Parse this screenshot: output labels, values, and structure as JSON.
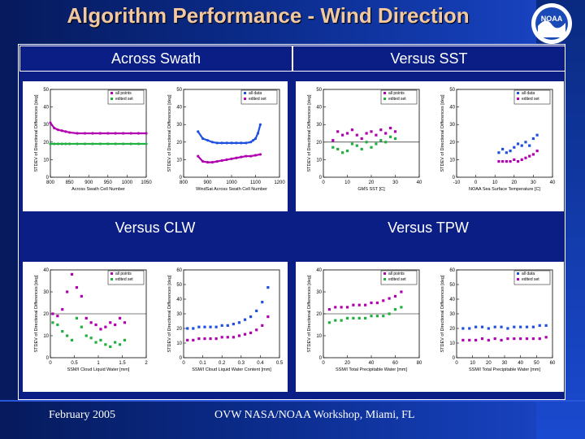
{
  "title": "Algorithm Performance - Wind Direction",
  "logo": {
    "text": "NOAA",
    "icon": "noaa-logo-icon"
  },
  "footer": {
    "date": "February 2005",
    "event": "OVW NASA/NOAA Workshop, Miami, FL"
  },
  "colors": {
    "series_all": "#4040d0",
    "series_edited": "#20b040",
    "series_purple": "#b000b0",
    "accent_title": "#f2c8a0"
  },
  "panels": [
    {
      "header": "Across Swath"
    },
    {
      "header": "Versus SST"
    },
    {
      "header": "Versus CLW"
    },
    {
      "header": "Versus TPW"
    }
  ],
  "chart_data": [
    {
      "type": "line",
      "panel": "Across Swath",
      "plot": "left",
      "title": "",
      "xlabel": "Across Swath Cell Number",
      "ylabel": "STDEV of Directional Differences [deg]",
      "xlim": [
        800,
        1050
      ],
      "ylim": [
        0,
        50
      ],
      "xticks": [
        800,
        850,
        900,
        950,
        1000,
        1050
      ],
      "yticks": [
        0,
        10,
        20,
        30,
        40,
        50
      ],
      "legend": [
        "all points",
        "edited set"
      ],
      "series": [
        {
          "name": "all points",
          "color": "#b000b0",
          "x": [
            800,
            810,
            820,
            830,
            840,
            850,
            870,
            890,
            910,
            930,
            950,
            970,
            990,
            1010,
            1030,
            1050
          ],
          "y": [
            31,
            28,
            27,
            26.5,
            26,
            25.5,
            25,
            25,
            25,
            25,
            25,
            25,
            25,
            25,
            25,
            25
          ]
        },
        {
          "name": "edited set",
          "color": "#20b040",
          "x": [
            800,
            810,
            820,
            830,
            840,
            850,
            870,
            890,
            910,
            930,
            950,
            970,
            990,
            1010,
            1030,
            1050
          ],
          "y": [
            19,
            19,
            19,
            19,
            19,
            19,
            19,
            19,
            19,
            19,
            19,
            19,
            19,
            19,
            19,
            19
          ]
        }
      ]
    },
    {
      "type": "line",
      "panel": "Across Swath",
      "plot": "right",
      "title": "",
      "xlabel": "WindSat Across Swath Cell Number",
      "ylabel": "STDEV of Directional Differences [deg]",
      "xlim": [
        800,
        1200
      ],
      "ylim": [
        0,
        50
      ],
      "xticks": [
        800,
        900,
        1000,
        1100,
        1200
      ],
      "yticks": [
        0,
        10,
        20,
        30,
        40,
        50
      ],
      "legend": [
        "all data",
        "edited set"
      ],
      "series": [
        {
          "name": "all data",
          "color": "#2050e0",
          "x": [
            860,
            880,
            900,
            920,
            940,
            960,
            980,
            1000,
            1020,
            1040,
            1060,
            1080,
            1090,
            1100,
            1110,
            1120
          ],
          "y": [
            26,
            22,
            21,
            20,
            19.5,
            19.5,
            19.5,
            19.5,
            19.5,
            19.5,
            19.5,
            20,
            21,
            22,
            25,
            30
          ]
        },
        {
          "name": "edited set",
          "color": "#b000b0",
          "x": [
            860,
            880,
            900,
            920,
            940,
            960,
            980,
            1000,
            1020,
            1040,
            1060,
            1080,
            1100,
            1120
          ],
          "y": [
            12,
            9,
            8.5,
            8.5,
            9,
            9.5,
            10,
            10.5,
            11,
            11.5,
            12,
            12,
            12.5,
            13
          ]
        }
      ]
    },
    {
      "type": "scatter",
      "panel": "Versus SST",
      "plot": "left",
      "title": "",
      "xlabel": "GMS SST [C]",
      "ylabel": "STDEV of Directional Differences [deg]",
      "xlim": [
        0,
        40
      ],
      "ylim": [
        0,
        50
      ],
      "xticks": [
        0,
        10,
        20,
        30,
        40
      ],
      "yticks": [
        0,
        10,
        20,
        30,
        40,
        50
      ],
      "legend": [
        "all points",
        "edited set"
      ],
      "reference_y": 20,
      "series": [
        {
          "name": "all points",
          "color": "#b000b0",
          "x": [
            4,
            6,
            8,
            10,
            12,
            14,
            16,
            18,
            20,
            22,
            24,
            26,
            28,
            30
          ],
          "y": [
            21,
            26,
            24,
            25,
            27,
            24,
            22,
            25,
            26,
            24,
            27,
            25,
            28,
            26
          ]
        },
        {
          "name": "edited set",
          "color": "#20b040",
          "x": [
            4,
            6,
            8,
            10,
            12,
            14,
            16,
            18,
            20,
            22,
            24,
            26,
            28,
            30
          ],
          "y": [
            17,
            16,
            14,
            15,
            19,
            18,
            16,
            20,
            17,
            19,
            21,
            20,
            23,
            22
          ]
        }
      ]
    },
    {
      "type": "scatter",
      "panel": "Versus SST",
      "plot": "right",
      "title": "",
      "xlabel": "NOAA Sea Surface Temperature [C]",
      "ylabel": "STDEV of Directional Differences [deg]",
      "xlim": [
        -10,
        40
      ],
      "ylim": [
        0,
        50
      ],
      "xticks": [
        -10,
        0,
        10,
        20,
        30,
        40
      ],
      "yticks": [
        0,
        10,
        20,
        30,
        40,
        50
      ],
      "legend": [
        "all data",
        "edited set"
      ],
      "series": [
        {
          "name": "all data",
          "color": "#2050e0",
          "x": [
            12,
            14,
            16,
            18,
            20,
            22,
            24,
            26,
            28,
            30,
            32
          ],
          "y": [
            14,
            16,
            14,
            15,
            17,
            19,
            18,
            20,
            18,
            22,
            24
          ]
        },
        {
          "name": "edited set",
          "color": "#b000b0",
          "x": [
            12,
            14,
            16,
            18,
            20,
            22,
            24,
            26,
            28,
            30,
            32
          ],
          "y": [
            9,
            9,
            9,
            9,
            10,
            9,
            10,
            11,
            12,
            13,
            15
          ]
        }
      ]
    },
    {
      "type": "scatter",
      "panel": "Versus CLW",
      "plot": "left",
      "title": "",
      "xlabel": "SSM/I Cloud Liquid Water [mm]",
      "ylabel": "STDEV of Directional Differences [deg]",
      "xlim": [
        0,
        2
      ],
      "ylim": [
        0,
        40
      ],
      "xticks": [
        0.0,
        0.5,
        1.0,
        1.5,
        2.0
      ],
      "yticks": [
        0,
        10,
        20,
        30,
        40
      ],
      "legend": [
        "all points",
        "edited set"
      ],
      "reference_y": 20,
      "series": [
        {
          "name": "all points",
          "color": "#b000b0",
          "x": [
            0.05,
            0.15,
            0.25,
            0.35,
            0.45,
            0.55,
            0.65,
            0.75,
            0.85,
            0.95,
            1.05,
            1.15,
            1.25,
            1.35,
            1.45,
            1.55
          ],
          "y": [
            20,
            19,
            22,
            30,
            38,
            32,
            28,
            18,
            16,
            15,
            13,
            14,
            16,
            15,
            18,
            16
          ]
        },
        {
          "name": "edited set",
          "color": "#20b040",
          "x": [
            0.05,
            0.15,
            0.25,
            0.35,
            0.45,
            0.55,
            0.65,
            0.75,
            0.85,
            0.95,
            1.05,
            1.15,
            1.25,
            1.35,
            1.45,
            1.55
          ],
          "y": [
            16,
            15,
            12,
            10,
            8,
            18,
            14,
            10,
            9,
            7,
            8,
            6,
            5,
            7,
            6,
            8
          ]
        }
      ]
    },
    {
      "type": "scatter",
      "panel": "Versus CLW",
      "plot": "right",
      "title": "",
      "xlabel": "SSM/I Cloud Liquid Water Content [mm]",
      "ylabel": "STDEV of Directional Differences [deg]",
      "xlim": [
        0,
        0.5
      ],
      "ylim": [
        0,
        60
      ],
      "xticks": [
        0,
        0.1,
        0.2,
        0.3,
        0.4,
        0.5
      ],
      "yticks": [
        0,
        10,
        20,
        30,
        40,
        50,
        60
      ],
      "legend": [],
      "series": [
        {
          "name": "all data",
          "color": "#2050e0",
          "x": [
            0.02,
            0.05,
            0.08,
            0.11,
            0.14,
            0.17,
            0.2,
            0.23,
            0.26,
            0.29,
            0.32,
            0.35,
            0.38,
            0.41,
            0.44
          ],
          "y": [
            20,
            20,
            21,
            21,
            21,
            21,
            22,
            22,
            23,
            24,
            26,
            28,
            32,
            38,
            48
          ]
        },
        {
          "name": "edited set",
          "color": "#b000b0",
          "x": [
            0.02,
            0.05,
            0.08,
            0.11,
            0.14,
            0.17,
            0.2,
            0.23,
            0.26,
            0.29,
            0.32,
            0.35,
            0.38,
            0.41,
            0.44
          ],
          "y": [
            12,
            12,
            13,
            13,
            13,
            13,
            14,
            14,
            14,
            15,
            16,
            17,
            19,
            22,
            28
          ]
        }
      ]
    },
    {
      "type": "scatter",
      "panel": "Versus TPW",
      "plot": "left",
      "title": "",
      "xlabel": "SSM/I Total Precipitable Water [mm]",
      "ylabel": "STDEV of Directional Differences [deg]",
      "xlim": [
        0,
        80
      ],
      "ylim": [
        0,
        40
      ],
      "xticks": [
        0,
        20,
        40,
        60,
        80
      ],
      "yticks": [
        0,
        10,
        20,
        30,
        40
      ],
      "legend": [
        "all points",
        "edited set"
      ],
      "reference_y": 20,
      "series": [
        {
          "name": "all points",
          "color": "#b000b0",
          "x": [
            5,
            10,
            15,
            20,
            25,
            30,
            35,
            40,
            45,
            50,
            55,
            60,
            65
          ],
          "y": [
            22,
            23,
            23,
            23,
            24,
            24,
            24,
            25,
            25,
            26,
            27,
            28,
            30
          ]
        },
        {
          "name": "edited set",
          "color": "#20b040",
          "x": [
            5,
            10,
            15,
            20,
            25,
            30,
            35,
            40,
            45,
            50,
            55,
            60,
            65
          ],
          "y": [
            16,
            17,
            17,
            18,
            18,
            18,
            18,
            19,
            19,
            19,
            20,
            22,
            23
          ]
        }
      ]
    },
    {
      "type": "scatter",
      "panel": "Versus TPW",
      "plot": "right",
      "title": "",
      "xlabel": "SSM/I Total Precipitable Water [mm]",
      "ylabel": "STDEV of Directional Differences [deg]",
      "xlim": [
        0,
        60
      ],
      "ylim": [
        0,
        60
      ],
      "xticks": [
        0,
        10,
        20,
        30,
        40,
        50,
        60
      ],
      "yticks": [
        0,
        10,
        20,
        30,
        40,
        50,
        60
      ],
      "legend": [
        "all data",
        "edited set"
      ],
      "series": [
        {
          "name": "all data",
          "color": "#2050e0",
          "x": [
            4,
            8,
            12,
            16,
            20,
            24,
            28,
            32,
            36,
            40,
            44,
            48,
            52,
            56
          ],
          "y": [
            20,
            20,
            21,
            21,
            20,
            21,
            21,
            20,
            21,
            21,
            21,
            21,
            22,
            22
          ]
        },
        {
          "name": "edited set",
          "color": "#b000b0",
          "x": [
            4,
            8,
            12,
            16,
            20,
            24,
            28,
            32,
            36,
            40,
            44,
            48,
            52,
            56
          ],
          "y": [
            12,
            12,
            12,
            13,
            12,
            13,
            12,
            13,
            13,
            13,
            13,
            13,
            13,
            14
          ]
        }
      ]
    }
  ]
}
